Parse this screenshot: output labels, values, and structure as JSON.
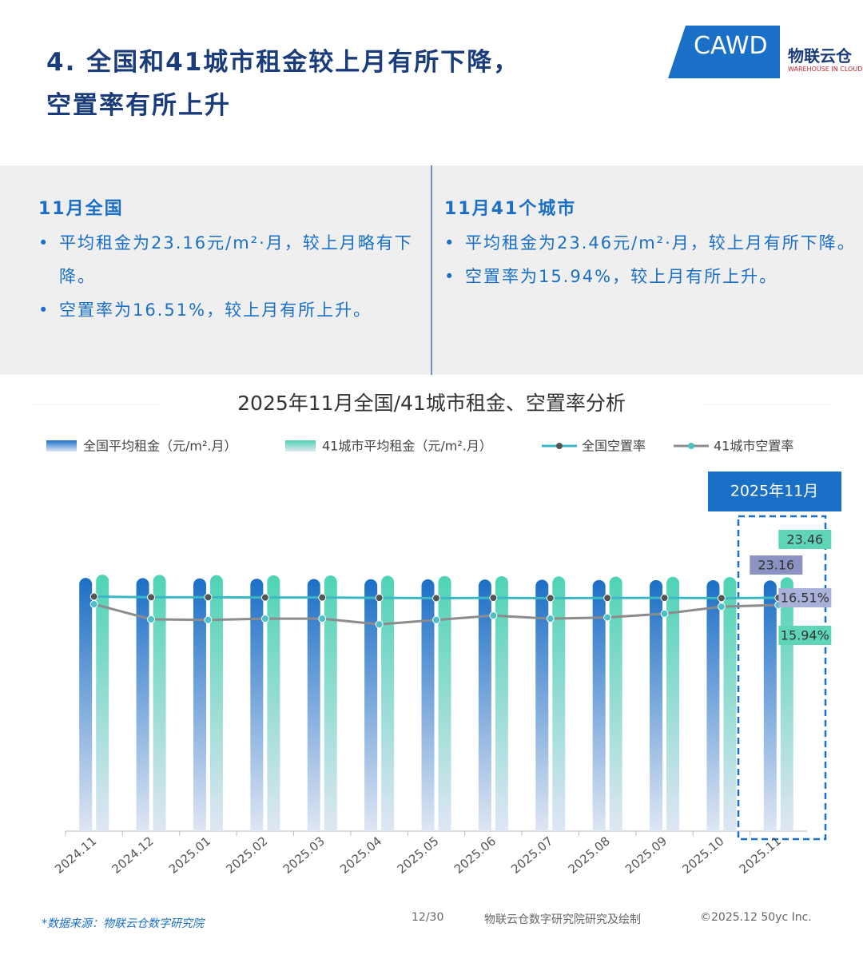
{
  "header": {
    "title_lines": [
      "4. 全国和41城市租金较上月有所下降，",
      "空置率有所上升"
    ],
    "logo": {
      "cawd": "CAWD",
      "brand": "物联云仓",
      "brand_en": "WAREHOUSE IN CLOUD"
    }
  },
  "panels": [
    {
      "heading": "11月全国",
      "bullets": [
        "平均租金为23.16元/m²·月，较上月略有下降。",
        "空置率为16.51%，较上月有所上升。"
      ]
    },
    {
      "heading": "11月41个城市",
      "bullets": [
        "平均租金为23.46元/m²·月，较上月有所下降。",
        "空置率为15.94%，较上月有所上升。"
      ]
    }
  ],
  "chart_data": {
    "type": "bar",
    "title": "2025年11月全国/41城市租金、空置率分析",
    "highlight_label": "2025年11月",
    "categories": [
      "2024.11",
      "2024.12",
      "2025.01",
      "2025.02",
      "2025.03",
      "2025.04",
      "2025.05",
      "2025.06",
      "2025.07",
      "2025.08",
      "2025.09",
      "2025.10",
      "2025.11"
    ],
    "ylim": [
      0,
      24
    ],
    "y2lim": [
      -2,
      18.6
    ],
    "series": [
      {
        "name": "全国平均租金（元/m².月）",
        "type": "bar",
        "color": "#1c6fc6",
        "values": [
          23.4,
          23.38,
          23.35,
          23.33,
          23.3,
          23.28,
          23.27,
          23.25,
          23.23,
          23.21,
          23.2,
          23.19,
          23.16
        ]
      },
      {
        "name": "41城市平均租金（元/m².月）",
        "type": "bar",
        "color": "#4fd3b4",
        "values": [
          23.7,
          23.68,
          23.66,
          23.64,
          23.62,
          23.6,
          23.58,
          23.56,
          23.54,
          23.52,
          23.5,
          23.48,
          23.46
        ]
      },
      {
        "name": "全国空置率",
        "type": "line",
        "axis": "y2",
        "color": "#3bb8c4",
        "marker_color": "#555555",
        "values": [
          16.6,
          16.55,
          16.55,
          16.53,
          16.53,
          16.5,
          16.48,
          16.5,
          16.48,
          16.49,
          16.5,
          16.48,
          16.51
        ],
        "value_labels": [
          null,
          null,
          null,
          null,
          null,
          null,
          null,
          null,
          null,
          null,
          null,
          null,
          "16.51%"
        ]
      },
      {
        "name": "41城市空置率",
        "type": "line",
        "axis": "y2",
        "color": "#8c8c8c",
        "marker_color": "#4dbfc8",
        "values": [
          16.0,
          14.8,
          14.75,
          14.85,
          14.85,
          14.4,
          14.75,
          15.1,
          14.85,
          14.95,
          15.25,
          15.8,
          15.94
        ],
        "value_labels": [
          null,
          null,
          null,
          null,
          null,
          null,
          null,
          null,
          null,
          null,
          null,
          null,
          "15.94%"
        ]
      }
    ]
  },
  "footer": {
    "source": "*数据来源：物联云仓数字研究院",
    "page": "12/30",
    "credit": "物联云仓数字研究院研究及绘制",
    "copyright": "©2025.12 50yc Inc."
  }
}
